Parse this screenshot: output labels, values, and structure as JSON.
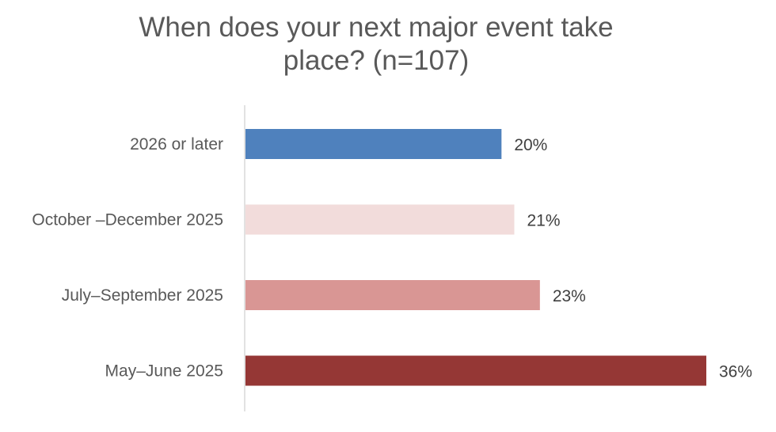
{
  "chart_data": {
    "type": "bar",
    "orientation": "horizontal",
    "title_lines": [
      "When does your next major event take",
      "place? (n=107)"
    ],
    "categories": [
      "2026 or later",
      "October –December 2025",
      "July–September 2025",
      "May–June 2025"
    ],
    "values": [
      20,
      21,
      23,
      36
    ],
    "value_labels": [
      "20%",
      "21%",
      "23%",
      "36%"
    ],
    "colors": [
      "#4F81BD",
      "#F2DCDB",
      "#D99694",
      "#953735"
    ],
    "xlim": [
      0,
      36
    ],
    "grid": false,
    "legend": "none"
  }
}
